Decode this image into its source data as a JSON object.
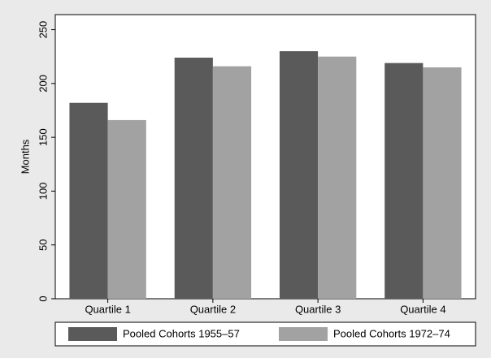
{
  "chart_data": {
    "type": "bar",
    "categories": [
      "Quartile 1",
      "Quartile 2",
      "Quartile 3",
      "Quartile 4"
    ],
    "y_label": "Months",
    "series": [
      {
        "name": "Pooled Cohorts 1955–57",
        "color": "#5a5a5a",
        "values": [
          182,
          224,
          230,
          219
        ]
      },
      {
        "name": "Pooled Cohorts 1972–74",
        "color": "#a2a2a2",
        "values": [
          166,
          216,
          225,
          215
        ]
      }
    ],
    "ylim": [
      0,
      264
    ],
    "yticks": [
      0,
      50,
      100,
      150,
      200,
      250
    ],
    "grid": false,
    "legend": "bottom"
  }
}
